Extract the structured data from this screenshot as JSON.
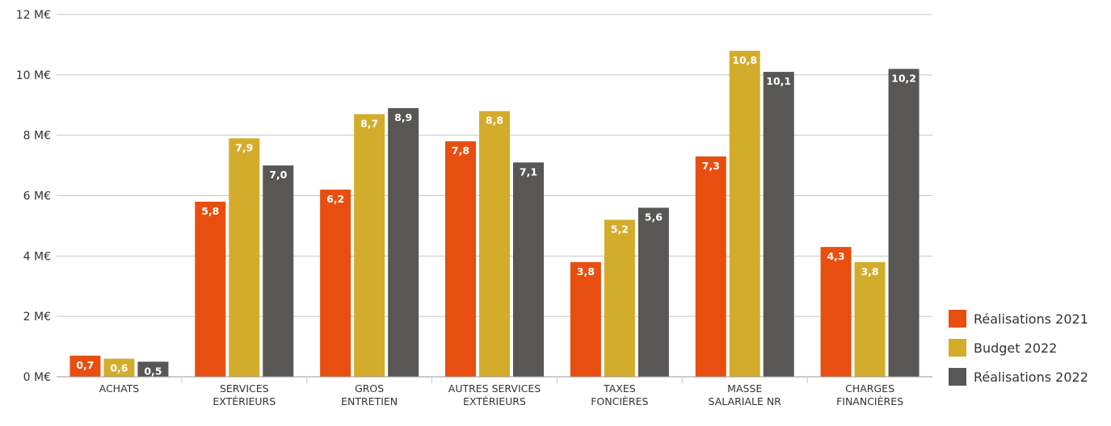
{
  "chart_data": {
    "type": "bar",
    "categories": [
      [
        "ACHATS"
      ],
      [
        "SERVICES",
        "EXTÉRIEURS"
      ],
      [
        "GROS",
        "ENTRETIEN"
      ],
      [
        "AUTRES SERVICES",
        "EXTÉRIEURS"
      ],
      [
        "TAXES",
        "FONCIÈRES"
      ],
      [
        "MASSE",
        "SALARIALE NR"
      ],
      [
        "CHARGES",
        "FINANCIÈRES"
      ]
    ],
    "series": [
      {
        "name": "Réalisations 2021",
        "color": "#E84E0F",
        "values": [
          0.7,
          5.8,
          6.2,
          7.8,
          3.8,
          7.3,
          4.3
        ],
        "labels": [
          "0,7",
          "5,8",
          "6,2",
          "7,8",
          "3,8",
          "7,3",
          "4,3"
        ]
      },
      {
        "name": "Budget 2022",
        "color": "#D4AC2B",
        "values": [
          0.6,
          7.9,
          8.7,
          8.8,
          5.2,
          10.8,
          3.8
        ],
        "labels": [
          "0,6",
          "7,9",
          "8,7",
          "8,8",
          "5,2",
          "10,8",
          "3,8"
        ]
      },
      {
        "name": "Réalisations 2022",
        "color": "#585756",
        "values": [
          0.5,
          7.0,
          8.9,
          7.1,
          5.6,
          10.1,
          10.2
        ],
        "labels": [
          "0,5",
          "7,0",
          "8,9",
          "7,1",
          "5,6",
          "10,1",
          "10,2"
        ]
      }
    ],
    "yticks": [
      {
        "value": 0,
        "label": "0 M€"
      },
      {
        "value": 2,
        "label": "2 M€"
      },
      {
        "value": 4,
        "label": "4 M€"
      },
      {
        "value": 6,
        "label": "6 M€"
      },
      {
        "value": 8,
        "label": "8 M€"
      },
      {
        "value": 10,
        "label": "10 M€"
      },
      {
        "value": 12,
        "label": "12 M€"
      }
    ],
    "ylim": [
      0,
      12
    ],
    "grid": true,
    "legend_position": "bottom-right",
    "gridline_color": "#c8c8c8"
  },
  "legend": {
    "items": [
      {
        "label": "Réalisations 2021",
        "color": "#E84E0F"
      },
      {
        "label": "Budget 2022",
        "color": "#D4AC2B"
      },
      {
        "label": "Réalisations 2022",
        "color": "#585756"
      }
    ]
  }
}
